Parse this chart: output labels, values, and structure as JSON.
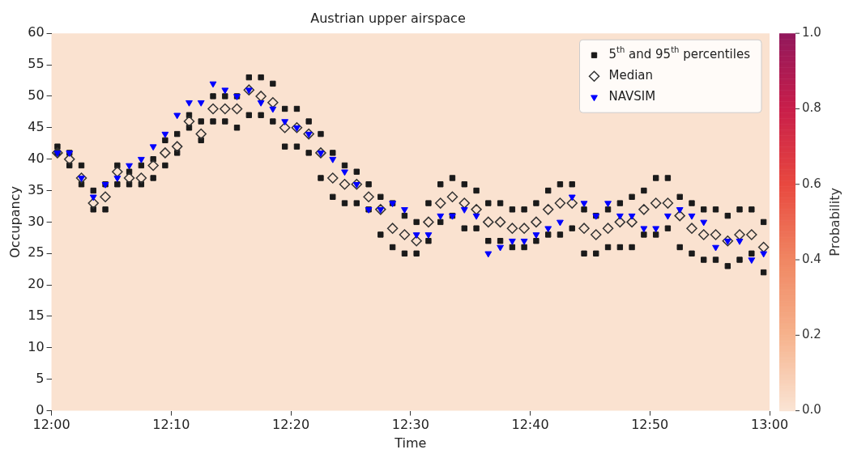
{
  "chart_data": {
    "type": "scatter",
    "title": "Austrian upper airspace",
    "xlabel": "Time",
    "ylabel": "Occupancy",
    "clabel": "Probability",
    "clim": [
      0,
      1
    ],
    "cticks": [
      {
        "value": 0,
        "label": "0.0"
      },
      {
        "value": 0.2,
        "label": "0.2"
      },
      {
        "value": 0.4,
        "label": "0.4"
      },
      {
        "value": 0.6,
        "label": "0.6"
      },
      {
        "value": 0.8,
        "label": "0.8"
      },
      {
        "value": 1,
        "label": "1.0"
      }
    ],
    "xlim": [
      12,
      13
    ],
    "xticks": [
      {
        "value": 12,
        "label": "12:00"
      },
      {
        "value": 12.1667,
        "label": "12:10"
      },
      {
        "value": 12.3333,
        "label": "12:20"
      },
      {
        "value": 12.5,
        "label": "12:30"
      },
      {
        "value": 12.6667,
        "label": "12:40"
      },
      {
        "value": 12.8333,
        "label": "12:50"
      },
      {
        "value": 13,
        "label": "13:00"
      }
    ],
    "ylim": [
      0,
      60
    ],
    "yticks": [
      0,
      5,
      10,
      15,
      20,
      25,
      30,
      35,
      40,
      45,
      50,
      55,
      60
    ],
    "x": [
      12.0083,
      12.025,
      12.0417,
      12.0583,
      12.075,
      12.0917,
      12.1083,
      12.125,
      12.1417,
      12.1583,
      12.175,
      12.1917,
      12.2083,
      12.225,
      12.2417,
      12.2583,
      12.275,
      12.2917,
      12.3083,
      12.325,
      12.3417,
      12.3583,
      12.375,
      12.3917,
      12.4083,
      12.425,
      12.4417,
      12.4583,
      12.475,
      12.4917,
      12.5083,
      12.525,
      12.5417,
      12.5583,
      12.575,
      12.5917,
      12.6083,
      12.625,
      12.6417,
      12.6583,
      12.675,
      12.6917,
      12.7083,
      12.725,
      12.7417,
      12.7583,
      12.775,
      12.7917,
      12.8083,
      12.825,
      12.8417,
      12.8583,
      12.875,
      12.8917,
      12.9083,
      12.925,
      12.9417,
      12.9583,
      12.975,
      12.9917
    ],
    "legend": "top right",
    "grid": false,
    "series": [
      {
        "name": "5$^{th}$ and 95$^{th}$ percentiles",
        "color": "#1a1a1a",
        "marker": "square",
        "x": [
          12.0083,
          12.025,
          12.0417,
          12.0583,
          12.075,
          12.0917,
          12.1083,
          12.125,
          12.1417,
          12.1583,
          12.175,
          12.1917,
          12.2083,
          12.225,
          12.2417,
          12.2583,
          12.275,
          12.2917,
          12.3083,
          12.325,
          12.3417,
          12.3583,
          12.375,
          12.3917,
          12.4083,
          12.425,
          12.4417,
          12.4583,
          12.475,
          12.4917,
          12.5083,
          12.525,
          12.5417,
          12.5583,
          12.575,
          12.5917,
          12.6083,
          12.625,
          12.6417,
          12.6583,
          12.675,
          12.6917,
          12.7083,
          12.725,
          12.7417,
          12.7583,
          12.775,
          12.7917,
          12.8083,
          12.825,
          12.8417,
          12.8583,
          12.875,
          12.8917,
          12.9083,
          12.925,
          12.9417,
          12.9583,
          12.975,
          12.9917,
          12.0083,
          12.025,
          12.0417,
          12.0583,
          12.075,
          12.0917,
          12.1083,
          12.125,
          12.1417,
          12.1583,
          12.175,
          12.1917,
          12.2083,
          12.225,
          12.2417,
          12.2583,
          12.275,
          12.2917,
          12.3083,
          12.325,
          12.3417,
          12.3583,
          12.375,
          12.3917,
          12.4083,
          12.425,
          12.4417,
          12.4583,
          12.475,
          12.4917,
          12.5083,
          12.525,
          12.5417,
          12.5583,
          12.575,
          12.5917,
          12.6083,
          12.625,
          12.6417,
          12.6583,
          12.675,
          12.6917,
          12.7083,
          12.725,
          12.7417,
          12.7583,
          12.775,
          12.7917,
          12.8083,
          12.825,
          12.8417,
          12.8583,
          12.875,
          12.8917,
          12.9083,
          12.925,
          12.9417,
          12.9583,
          12.975,
          12.9917
        ],
        "values": [
          41,
          39,
          36,
          32,
          32,
          36,
          36,
          36,
          37,
          39,
          41,
          45,
          43,
          46,
          46,
          45,
          47,
          47,
          46,
          42,
          42,
          41,
          37,
          34,
          33,
          33,
          32,
          28,
          26,
          25,
          25,
          27,
          30,
          31,
          29,
          29,
          27,
          27,
          26,
          26,
          27,
          28,
          28,
          29,
          25,
          25,
          26,
          26,
          26,
          28,
          28,
          29,
          26,
          25,
          24,
          24,
          23,
          24,
          25,
          22,
          42,
          41,
          39,
          35,
          36,
          39,
          38,
          39,
          40,
          43,
          44,
          47,
          46,
          50,
          50,
          50,
          53,
          53,
          52,
          48,
          48,
          46,
          44,
          41,
          39,
          38,
          36,
          34,
          33,
          31,
          30,
          33,
          36,
          37,
          36,
          35,
          33,
          33,
          32,
          32,
          33,
          35,
          36,
          36,
          32,
          31,
          32,
          33,
          34,
          35,
          37,
          37,
          34,
          33,
          32,
          32,
          31,
          32,
          32,
          30
        ]
      },
      {
        "name": "Median",
        "color": "#333333",
        "marker": "diamond",
        "values": [
          41,
          40,
          37,
          33,
          34,
          38,
          37,
          37,
          39,
          41,
          42,
          46,
          44,
          48,
          48,
          48,
          51,
          50,
          49,
          45,
          45,
          44,
          41,
          37,
          36,
          36,
          34,
          32,
          29,
          28,
          27,
          30,
          33,
          34,
          33,
          32,
          30,
          30,
          29,
          29,
          30,
          32,
          33,
          33,
          29,
          28,
          29,
          30,
          30,
          32,
          33,
          33,
          31,
          29,
          28,
          28,
          27,
          28,
          28,
          26
        ]
      },
      {
        "name": "NAVSIM",
        "color": "#0000ff",
        "marker": "triangle",
        "values": [
          41,
          41,
          37,
          34,
          36,
          37,
          39,
          40,
          42,
          44,
          47,
          49,
          49,
          52,
          51,
          50,
          51,
          49,
          48,
          46,
          45,
          44,
          41,
          40,
          38,
          36,
          32,
          32,
          33,
          32,
          28,
          28,
          31,
          31,
          32,
          31,
          25,
          26,
          27,
          27,
          28,
          29,
          30,
          34,
          33,
          31,
          33,
          31,
          31,
          29,
          29,
          31,
          32,
          31,
          30,
          26,
          27,
          27,
          24,
          25
        ]
      }
    ]
  }
}
